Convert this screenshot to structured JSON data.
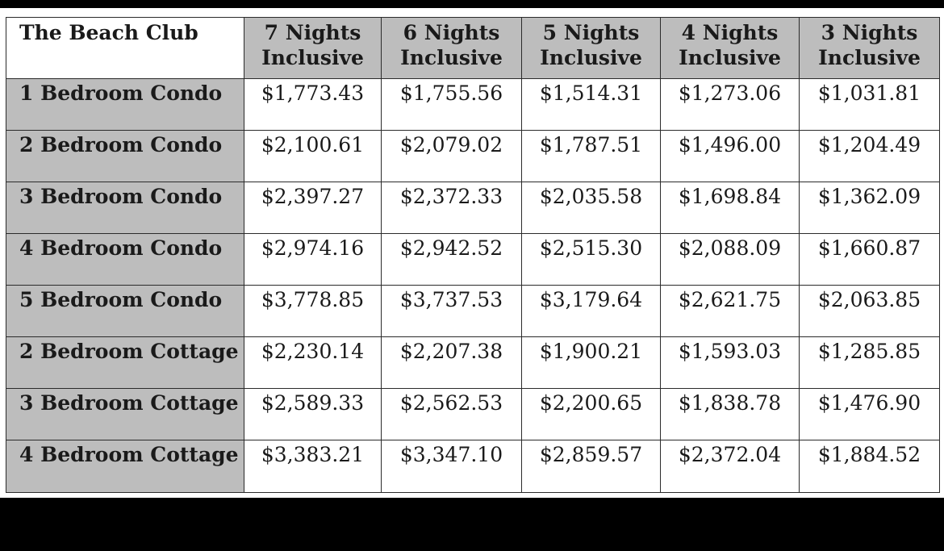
{
  "table": {
    "corner_label": "The Beach Club",
    "columns": [
      {
        "line1": "7 Nights",
        "line2": "Inclusive"
      },
      {
        "line1": "6 Nights",
        "line2": "Inclusive"
      },
      {
        "line1": "5 Nights",
        "line2": "Inclusive"
      },
      {
        "line1": "4 Nights",
        "line2": "Inclusive"
      },
      {
        "line1": "3 Nights",
        "line2": "Inclusive"
      }
    ],
    "rows": [
      {
        "label": "1 Bedroom Condo",
        "prices": [
          "$1,773.43",
          "$1,755.56",
          "$1,514.31",
          "$1,273.06",
          "$1,031.81"
        ]
      },
      {
        "label": "2 Bedroom Condo",
        "prices": [
          "$2,100.61",
          "$2,079.02",
          "$1,787.51",
          "$1,496.00",
          "$1,204.49"
        ]
      },
      {
        "label": "3 Bedroom Condo",
        "prices": [
          "$2,397.27",
          "$2,372.33",
          "$2,035.58",
          "$1,698.84",
          "$1,362.09"
        ]
      },
      {
        "label": "4 Bedroom Condo",
        "prices": [
          "$2,974.16",
          "$2,942.52",
          "$2,515.30",
          "$2,088.09",
          "$1,660.87"
        ]
      },
      {
        "label": "5 Bedroom Condo",
        "prices": [
          "$3,778.85",
          "$3,737.53",
          "$3,179.64",
          "$2,621.75",
          "$2,063.85"
        ]
      },
      {
        "label": "2 Bedroom Cottage",
        "prices": [
          "$2,230.14",
          "$2,207.38",
          "$1,900.21",
          "$1,593.03",
          "$1,285.85"
        ]
      },
      {
        "label": "3 Bedroom Cottage",
        "prices": [
          "$2,589.33",
          "$2,562.53",
          "$2,200.65",
          "$1,838.78",
          "$1,476.90"
        ]
      },
      {
        "label": "4 Bedroom Cottage",
        "prices": [
          "$3,383.21",
          "$3,347.10",
          "$2,859.57",
          "$2,372.04",
          "$1,884.52"
        ]
      }
    ]
  },
  "colors": {
    "header_fill": "#bdbdbd",
    "cell_fill": "#ffffff",
    "border": "#2b2b2b",
    "background": "#000000"
  }
}
